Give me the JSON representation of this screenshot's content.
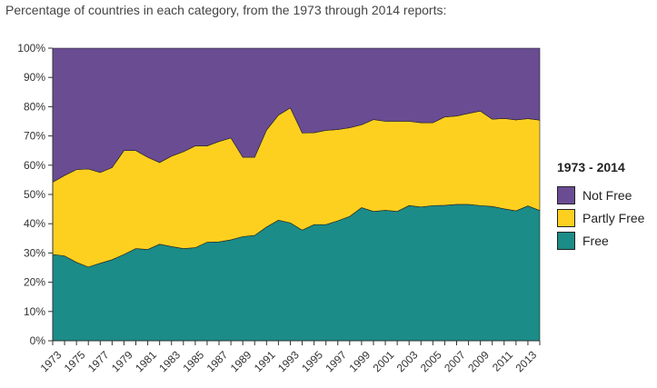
{
  "title": "Percentage of countries in each category, from the 1973 through 2014 reports:",
  "legend": {
    "title": "1973 - 2014",
    "items": [
      {
        "label": "Not Free",
        "color": "#6a4c93"
      },
      {
        "label": "Partly Free",
        "color": "#fdd020"
      },
      {
        "label": "Free",
        "color": "#1b8c88"
      }
    ]
  },
  "chart_data": {
    "type": "area",
    "stacked": true,
    "x": [
      1973,
      1974,
      1975,
      1976,
      1977,
      1978,
      1979,
      1980,
      1981,
      1982,
      1983,
      1984,
      1985,
      1986,
      1987,
      1988,
      1989,
      1990,
      1991,
      1992,
      1993,
      1994,
      1995,
      1996,
      1997,
      1998,
      1999,
      2000,
      2001,
      2002,
      2003,
      2004,
      2005,
      2006,
      2007,
      2008,
      2009,
      2010,
      2011,
      2012,
      2013,
      2014
    ],
    "x_tick_labels": [
      "1973",
      "1975",
      "1977",
      "1979",
      "1981",
      "1983",
      "1985",
      "1987",
      "1989",
      "1991",
      "1993",
      "1995",
      "1997",
      "1999",
      "2001",
      "2003",
      "2005",
      "2007",
      "2009",
      "2011",
      "2013"
    ],
    "y_tick_labels": [
      "0%",
      "10%",
      "20%",
      "30%",
      "40%",
      "50%",
      "60%",
      "70%",
      "80%",
      "90%",
      "100%"
    ],
    "ylim": [
      0,
      100
    ],
    "series": [
      {
        "name": "Free",
        "color": "#1b8c88",
        "values": [
          29.5,
          29,
          26.8,
          25.2,
          26.5,
          27.7,
          29.5,
          31.5,
          31.2,
          33,
          32.2,
          31.5,
          31.8,
          33.7,
          33.8,
          34.5,
          35.6,
          36,
          38.9,
          41.2,
          40.3,
          37.8,
          39.7,
          39.7,
          41,
          42.5,
          45.5,
          44.2,
          44.6,
          44.2,
          46.2,
          45.7,
          46.2,
          46.3,
          46.6,
          46.6,
          46.2,
          45.9,
          45.1,
          44.4,
          46.1,
          44.5
        ]
      },
      {
        "name": "Partly Free",
        "color": "#fdd020",
        "values": [
          24.7,
          27.5,
          31.7,
          33.5,
          31,
          31.5,
          35.5,
          33.5,
          31.5,
          27.9,
          30.9,
          33.1,
          34.8,
          32.9,
          34.3,
          34.8,
          27.1,
          26.7,
          33.1,
          35.9,
          39.3,
          33.2,
          31.4,
          32.2,
          31.2,
          30.3,
          28.3,
          31.4,
          30.4,
          30.8,
          28.8,
          28.8,
          28.3,
          30.2,
          30.2,
          31.1,
          32.3,
          29.8,
          30.9,
          31.1,
          29.8,
          30.9
        ]
      },
      {
        "name": "Not Free",
        "color": "#6a4c93",
        "values": [
          45.8,
          43.5,
          41.5,
          41.3,
          42.5,
          40.8,
          35,
          35,
          37.3,
          39.1,
          36.9,
          35.4,
          33.4,
          33.4,
          31.9,
          30.7,
          37.3,
          37.3,
          28,
          22.9,
          20.4,
          29,
          28.9,
          28.1,
          27.8,
          27.2,
          26.2,
          24.4,
          25,
          25,
          25,
          25.5,
          25.5,
          23.5,
          23.2,
          22.3,
          21.5,
          24.3,
          24,
          24.5,
          24.1,
          24.6
        ]
      }
    ]
  }
}
